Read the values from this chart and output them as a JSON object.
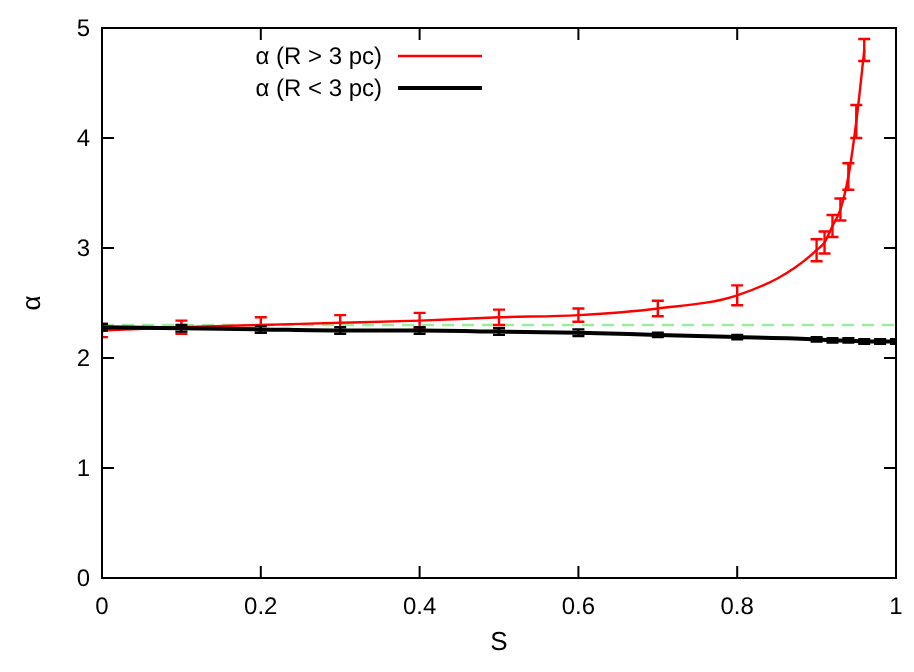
{
  "chart_data": {
    "type": "line",
    "xlabel": "S",
    "ylabel": "α",
    "xlim": [
      0,
      1
    ],
    "ylim": [
      0,
      5
    ],
    "xticks": [
      0,
      0.2,
      0.4,
      0.6,
      0.8,
      1
    ],
    "yticks": [
      0,
      1,
      2,
      3,
      4,
      5
    ],
    "legend": "top left",
    "line_style": "solid",
    "grid": false,
    "series": [
      {
        "name": "α (R > 3 pc)",
        "color": "#ff0000",
        "x": [
          0,
          0.1,
          0.2,
          0.3,
          0.4,
          0.5,
          0.6,
          0.7,
          0.8,
          0.9,
          0.91,
          0.92,
          0.93,
          0.94,
          0.95,
          0.96
        ],
        "values": [
          2.25,
          2.28,
          2.3,
          2.32,
          2.34,
          2.37,
          2.39,
          2.45,
          2.57,
          2.98,
          3.05,
          3.2,
          3.35,
          3.65,
          4.15,
          4.8
        ],
        "errors": [
          0.06,
          0.06,
          0.07,
          0.07,
          0.07,
          0.07,
          0.06,
          0.07,
          0.09,
          0.1,
          0.1,
          0.1,
          0.1,
          0.12,
          0.15,
          0.1
        ]
      },
      {
        "name": "α (R < 3 pc)",
        "color": "#000000",
        "x": [
          0,
          0.1,
          0.2,
          0.3,
          0.4,
          0.5,
          0.6,
          0.7,
          0.8,
          0.9,
          0.92,
          0.94,
          0.96,
          0.98,
          1
        ],
        "values": [
          2.28,
          2.27,
          2.26,
          2.25,
          2.25,
          2.24,
          2.23,
          2.21,
          2.19,
          2.17,
          2.16,
          2.16,
          2.15,
          2.15,
          2.15
        ],
        "errors": [
          0.03,
          0.03,
          0.03,
          0.03,
          0.03,
          0.03,
          0.03,
          0.02,
          0.02,
          0.02,
          0.02,
          0.02,
          0.02,
          0.02,
          0.02
        ]
      }
    ],
    "ref_lines": [
      {
        "axis": "y",
        "value": 2.3,
        "color": "#99ee99",
        "line_style": "dashed"
      }
    ]
  }
}
